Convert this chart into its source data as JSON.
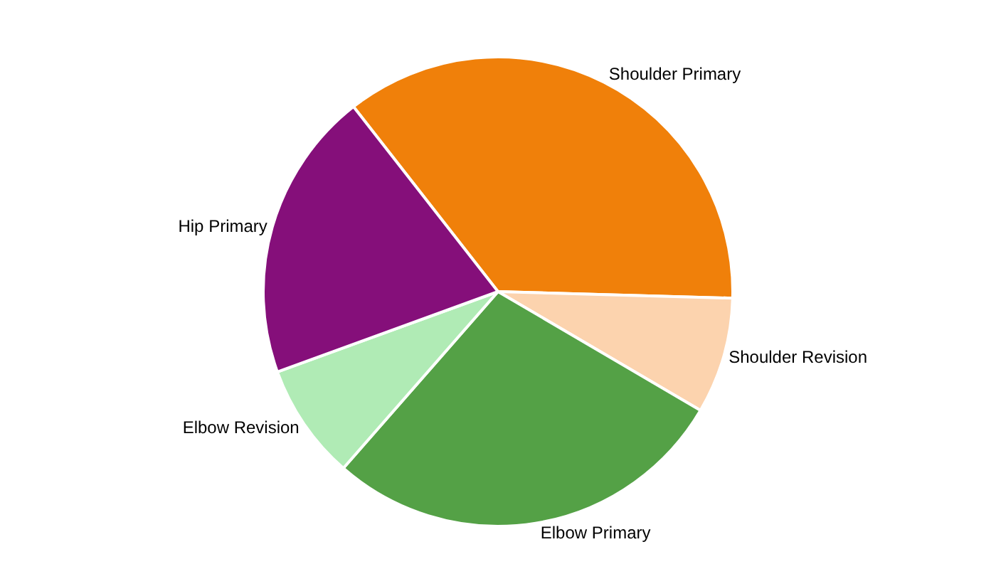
{
  "chart_data": {
    "type": "pie",
    "categories": [
      "Shoulder Primary",
      "Shoulder Revision",
      "Elbow Primary",
      "Elbow Revision",
      "Hip Primary"
    ],
    "values": [
      36,
      8,
      28,
      8,
      20
    ],
    "colors": [
      "#f0800a",
      "#fcd3ae",
      "#54a146",
      "#b0ebb5",
      "#850f7a"
    ],
    "legend": false
  }
}
